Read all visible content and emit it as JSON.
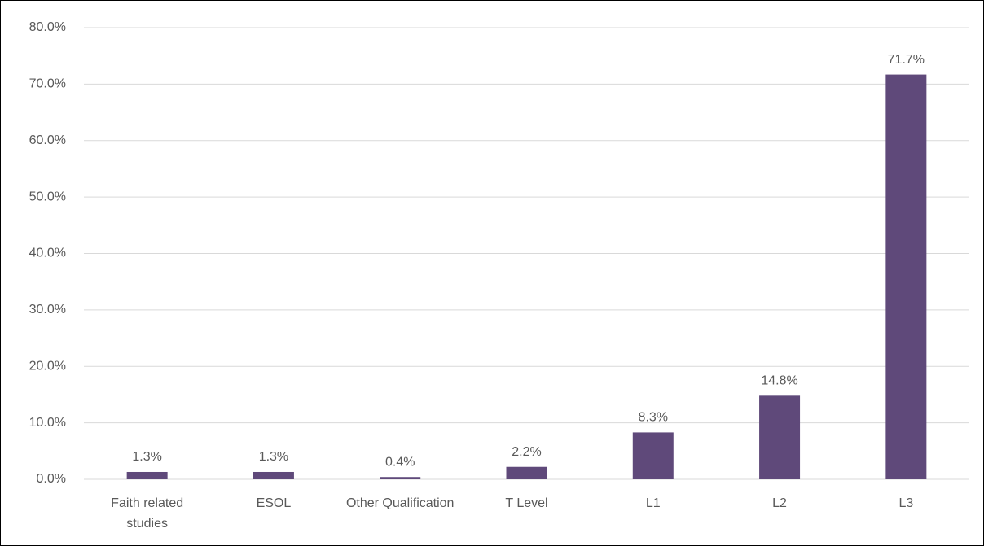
{
  "chart_data": {
    "type": "bar",
    "categories": [
      "Faith related studies",
      "ESOL",
      "Other Qualification",
      "T Level",
      "L1",
      "L2",
      "L3"
    ],
    "values": [
      1.3,
      1.3,
      0.4,
      2.2,
      8.3,
      14.8,
      71.7
    ],
    "value_labels": [
      "1.3%",
      "1.3%",
      "0.4%",
      "2.2%",
      "8.3%",
      "14.8%",
      "71.7%"
    ],
    "color": "#5f497a",
    "ylim": [
      0,
      80
    ],
    "yticks": [
      {
        "value": 0,
        "label": "0.0%"
      },
      {
        "value": 10,
        "label": "10.0%"
      },
      {
        "value": 20,
        "label": "20.0%"
      },
      {
        "value": 30,
        "label": "30.0%"
      },
      {
        "value": 40,
        "label": "40.0%"
      },
      {
        "value": 50,
        "label": "50.0%"
      },
      {
        "value": 60,
        "label": "60.0%"
      },
      {
        "value": 70,
        "label": "70.0%"
      },
      {
        "value": 80,
        "label": "80.0%"
      }
    ],
    "grid": true
  }
}
